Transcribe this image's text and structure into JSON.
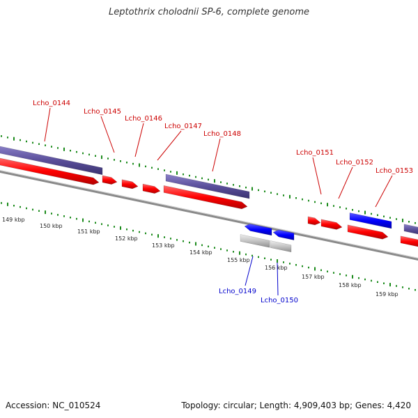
{
  "title": "Leptothrix cholodnii SP-6, complete genome",
  "footer": {
    "accession": "Accession: NC_010524",
    "summary": "Topology: circular; Length: 4,909,403 bp; Genes: 4,420"
  },
  "ruler": {
    "unit": "kbp",
    "tick_labels": [
      "149 kbp",
      "150 kbp",
      "151 kbp",
      "152 kbp",
      "153 kbp",
      "154 kbp",
      "155 kbp",
      "156 kbp",
      "157 kbp",
      "158 kbp",
      "159 kbp"
    ]
  },
  "genes": [
    {
      "label": "Lcho_0144",
      "strand": "forward",
      "color": "#ff0000"
    },
    {
      "label": "Lcho_0145",
      "strand": "forward",
      "color": "#ff0000"
    },
    {
      "label": "Lcho_0146",
      "strand": "forward",
      "color": "#ff0000"
    },
    {
      "label": "Lcho_0147",
      "strand": "forward",
      "color": "#ff0000"
    },
    {
      "label": "Lcho_0148",
      "strand": "forward",
      "color": "#ff0000"
    },
    {
      "label": "Lcho_0149",
      "strand": "reverse",
      "color": "#0000cc"
    },
    {
      "label": "Lcho_0150",
      "strand": "reverse",
      "color": "#0000cc"
    },
    {
      "label": "Lcho_0151",
      "strand": "forward",
      "color": "#ff0000"
    },
    {
      "label": "Lcho_0152",
      "strand": "forward",
      "color": "#ff0000"
    },
    {
      "label": "Lcho_0153",
      "strand": "forward",
      "color": "#ff0000"
    }
  ],
  "colors": {
    "forward_gene": "#ff0000",
    "reverse_gene": "#0000ff",
    "forward_cds_bar": "#5a4f9a",
    "reverse_cds_bar": "#bdbdbd",
    "backbone": "#8a8a8a",
    "tick": "#1a8a1a",
    "forward_label": "#cc0000",
    "reverse_label": "#0000cc"
  }
}
